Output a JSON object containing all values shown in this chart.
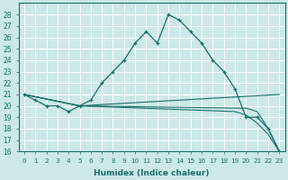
{
  "title": "",
  "xlabel": "Humidex (Indice chaleur)",
  "xlim": [
    -0.5,
    23.5
  ],
  "ylim": [
    16,
    29
  ],
  "yticks": [
    16,
    17,
    18,
    19,
    20,
    21,
    22,
    23,
    24,
    25,
    26,
    27,
    28
  ],
  "xticks": [
    0,
    1,
    2,
    3,
    4,
    5,
    6,
    7,
    8,
    9,
    10,
    11,
    12,
    13,
    14,
    15,
    16,
    17,
    18,
    19,
    20,
    21,
    22,
    23
  ],
  "bg_color": "#cce8e8",
  "grid_color": "#b0d4d4",
  "line_color": "#1a6e6a",
  "line1": {
    "x": [
      0,
      1,
      2,
      3,
      4,
      5,
      6,
      7,
      8,
      9,
      10,
      11,
      12,
      13,
      14,
      15,
      16,
      17,
      18,
      19,
      20,
      21,
      22,
      23
    ],
    "y": [
      21,
      20.5,
      20,
      20,
      19.5,
      20,
      20.5,
      22,
      23,
      24,
      25.5,
      26.5,
      25.5,
      28,
      27.5,
      26.5,
      25.5,
      24,
      23,
      21.5,
      19,
      19,
      18,
      16
    ]
  },
  "line2": {
    "x": [
      0,
      5,
      23
    ],
    "y": [
      21,
      20,
      21
    ]
  },
  "line3": {
    "x": [
      0,
      5,
      19,
      20,
      21,
      22,
      23
    ],
    "y": [
      21,
      20,
      19.8,
      19.8,
      19.5,
      18,
      16
    ]
  },
  "line4": {
    "x": [
      0,
      5,
      19,
      20,
      21,
      22,
      23
    ],
    "y": [
      21,
      20,
      19.5,
      19.2,
      18.5,
      17.5,
      16
    ]
  }
}
